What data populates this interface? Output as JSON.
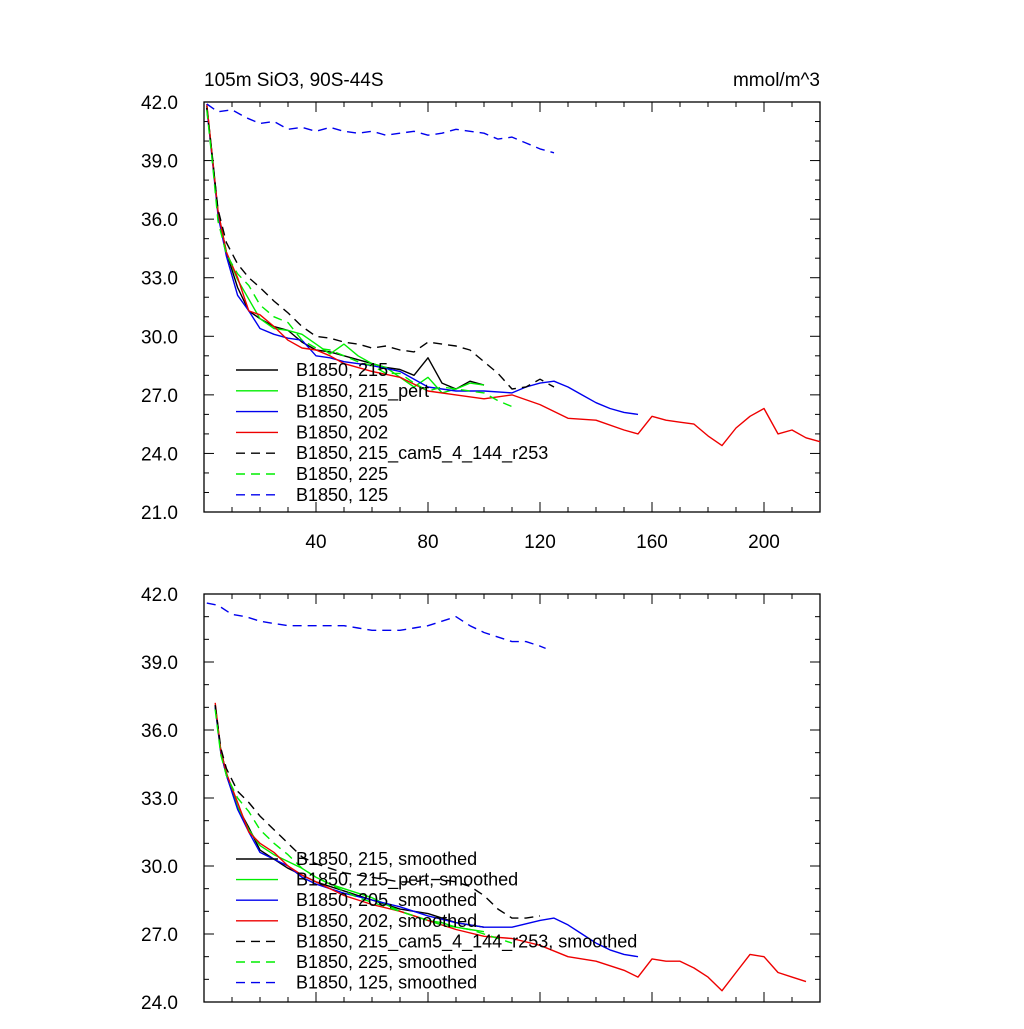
{
  "figure": {
    "title": "105m SiO3, 90S-44S",
    "units": "mmol/m^3"
  },
  "chart_data": [
    {
      "type": "line",
      "title": "105m SiO3, 90S-44S",
      "units": "mmol/m^3",
      "xlabel": "",
      "ylabel": "",
      "xlim": [
        0,
        220
      ],
      "ylim": [
        21,
        42
      ],
      "xticks": [
        40,
        80,
        120,
        160,
        200
      ],
      "xtick_labels": [
        "40",
        "80",
        "120",
        "160",
        "200"
      ],
      "yticks": [
        21,
        24,
        27,
        30,
        33,
        36,
        39,
        42
      ],
      "ytick_labels": [
        "21.0",
        "24.0",
        "27.0",
        "30.0",
        "33.0",
        "36.0",
        "39.0",
        "42.0"
      ],
      "legend_position": "bottom-left",
      "series": [
        {
          "name": "B1850, 215",
          "color": "#000000",
          "dash": "solid",
          "x": [
            1,
            3,
            5,
            8,
            12,
            16,
            20,
            25,
            30,
            35,
            40,
            45,
            50,
            55,
            60,
            65,
            70,
            75,
            80,
            85,
            90,
            95,
            100
          ],
          "y": [
            41.8,
            39.2,
            36.4,
            34.3,
            32.5,
            31.3,
            30.9,
            30.5,
            30.3,
            29.7,
            29.3,
            29.2,
            29.0,
            28.8,
            28.6,
            28.4,
            28.3,
            28.0,
            28.9,
            27.6,
            27.3,
            27.7,
            27.5
          ]
        },
        {
          "name": "B1850, 215_pert",
          "color": "#00ee00",
          "dash": "solid",
          "x": [
            1,
            3,
            5,
            8,
            12,
            16,
            20,
            25,
            30,
            35,
            40,
            45,
            50,
            55,
            60,
            65,
            70,
            75,
            80,
            85,
            90,
            95,
            100
          ],
          "y": [
            41.8,
            39.1,
            36.3,
            34.3,
            32.9,
            31.9,
            30.9,
            30.4,
            30.3,
            30.1,
            29.6,
            29.1,
            29.6,
            29.0,
            28.6,
            28.4,
            27.9,
            27.4,
            27.9,
            27.1,
            27.3,
            27.6,
            27.5
          ]
        },
        {
          "name": "B1850, 205",
          "color": "#0000ee",
          "dash": "solid",
          "x": [
            1,
            3,
            5,
            8,
            12,
            16,
            20,
            25,
            30,
            35,
            40,
            45,
            50,
            60,
            70,
            80,
            90,
            100,
            110,
            115,
            120,
            125,
            130,
            135,
            140,
            145,
            150,
            155
          ],
          "y": [
            41.7,
            39.0,
            36.2,
            34.1,
            32.1,
            31.3,
            30.4,
            30.1,
            29.9,
            29.8,
            29.0,
            28.9,
            28.7,
            28.5,
            28.2,
            27.4,
            27.2,
            27.2,
            27.1,
            27.4,
            27.6,
            27.7,
            27.4,
            27.0,
            26.6,
            26.3,
            26.1,
            26.0
          ]
        },
        {
          "name": "B1850, 202",
          "color": "#ee0000",
          "dash": "solid",
          "x": [
            1,
            3,
            5,
            8,
            12,
            16,
            20,
            25,
            30,
            35,
            40,
            45,
            50,
            60,
            70,
            80,
            90,
            100,
            110,
            120,
            130,
            140,
            150,
            155,
            160,
            165,
            170,
            175,
            180,
            185,
            190,
            195,
            200,
            205,
            210,
            215,
            220
          ],
          "y": [
            41.9,
            39.1,
            36.4,
            34.3,
            33.0,
            31.3,
            31.1,
            30.5,
            29.8,
            29.4,
            29.3,
            29.0,
            28.6,
            28.2,
            27.9,
            27.2,
            27.0,
            26.8,
            27.0,
            26.5,
            25.8,
            25.7,
            25.2,
            25.0,
            25.9,
            25.7,
            25.6,
            25.5,
            24.9,
            24.4,
            25.3,
            25.9,
            26.3,
            25.0,
            25.2,
            24.8,
            24.6
          ]
        },
        {
          "name": "B1850, 215_cam5_4_144_r253",
          "color": "#000000",
          "dash": "dashed",
          "x": [
            1,
            3,
            5,
            8,
            12,
            16,
            20,
            25,
            30,
            35,
            40,
            45,
            50,
            55,
            60,
            65,
            70,
            75,
            80,
            85,
            90,
            95,
            100,
            105,
            110,
            115,
            120,
            125
          ],
          "y": [
            41.7,
            39.1,
            36.5,
            34.8,
            33.7,
            33.0,
            32.5,
            31.8,
            31.2,
            30.5,
            30.0,
            29.9,
            29.7,
            29.6,
            29.4,
            29.5,
            29.3,
            29.2,
            29.7,
            29.6,
            29.5,
            29.3,
            28.7,
            28.1,
            27.3,
            27.4,
            27.8,
            27.4
          ]
        },
        {
          "name": "B1850, 225",
          "color": "#00ee00",
          "dash": "dashed",
          "x": [
            1,
            3,
            5,
            8,
            12,
            16,
            20,
            25,
            30,
            35,
            40,
            45,
            50,
            55,
            60,
            65,
            70,
            75,
            80,
            85,
            90,
            95,
            100,
            105,
            110
          ],
          "y": [
            41.6,
            38.9,
            35.9,
            34.2,
            33.2,
            32.6,
            31.6,
            31.0,
            30.7,
            29.8,
            29.4,
            29.3,
            29.0,
            28.7,
            28.5,
            28.1,
            28.1,
            27.6,
            27.2,
            27.4,
            27.3,
            27.2,
            27.1,
            26.7,
            26.4
          ]
        },
        {
          "name": "B1850, 125",
          "color": "#0000ee",
          "dash": "dashed",
          "x": [
            1,
            5,
            10,
            15,
            20,
            25,
            30,
            35,
            40,
            45,
            50,
            55,
            60,
            65,
            70,
            75,
            80,
            85,
            90,
            95,
            100,
            105,
            110,
            115,
            120,
            125
          ],
          "y": [
            41.9,
            41.5,
            41.6,
            41.2,
            40.9,
            41.0,
            40.6,
            40.7,
            40.5,
            40.7,
            40.5,
            40.4,
            40.5,
            40.3,
            40.4,
            40.5,
            40.3,
            40.4,
            40.6,
            40.5,
            40.4,
            40.1,
            40.2,
            39.9,
            39.6,
            39.4
          ]
        }
      ]
    },
    {
      "type": "line",
      "title": "",
      "xlabel": "",
      "ylabel": "",
      "xlim": [
        0,
        220
      ],
      "ylim": [
        24,
        42
      ],
      "xticks": [
        40,
        80,
        120,
        160,
        200
      ],
      "yticks": [
        24,
        27,
        30,
        33,
        36,
        39,
        42
      ],
      "ytick_labels": [
        "24.0",
        "27.0",
        "30.0",
        "33.0",
        "36.0",
        "39.0",
        "42.0"
      ],
      "legend_position": "bottom-left",
      "series": [
        {
          "name": "B1850, 215, smoothed",
          "color": "#000000",
          "dash": "solid",
          "x": [
            4,
            6,
            8,
            12,
            16,
            20,
            25,
            30,
            35,
            40,
            45,
            50,
            55,
            60,
            65,
            70,
            75,
            80,
            85,
            90,
            95,
            100
          ],
          "y": [
            37.1,
            35.1,
            34.1,
            32.6,
            31.7,
            30.7,
            30.3,
            29.9,
            29.6,
            29.3,
            29.1,
            28.9,
            28.7,
            28.5,
            28.3,
            28.1,
            28.0,
            27.9,
            27.7,
            27.5,
            27.4,
            27.3
          ]
        },
        {
          "name": "B1850, 215_pert, smoothed",
          "color": "#00ee00",
          "dash": "solid",
          "x": [
            4,
            6,
            8,
            12,
            16,
            20,
            25,
            30,
            35,
            40,
            45,
            50,
            55,
            60,
            65,
            70,
            75,
            80,
            85,
            90,
            95,
            100
          ],
          "y": [
            37.0,
            35.0,
            34.0,
            32.6,
            31.6,
            30.9,
            30.5,
            30.2,
            29.9,
            29.5,
            29.2,
            29.0,
            28.8,
            28.6,
            28.3,
            28.0,
            27.8,
            27.6,
            27.5,
            27.3,
            27.2,
            27.1
          ]
        },
        {
          "name": "B1850, 205, smoothed",
          "color": "#0000ee",
          "dash": "solid",
          "x": [
            4,
            6,
            8,
            12,
            16,
            20,
            25,
            30,
            35,
            40,
            50,
            60,
            70,
            80,
            90,
            100,
            110,
            120,
            125,
            130,
            135,
            140,
            145,
            150,
            155
          ],
          "y": [
            37.0,
            35.0,
            34.0,
            32.5,
            31.5,
            30.6,
            30.3,
            30.0,
            29.5,
            29.2,
            28.8,
            28.5,
            28.2,
            27.8,
            27.5,
            27.3,
            27.3,
            27.6,
            27.7,
            27.4,
            27.0,
            26.6,
            26.3,
            26.1,
            26.0
          ]
        },
        {
          "name": "B1850, 202, smoothed",
          "color": "#ee0000",
          "dash": "solid",
          "x": [
            4,
            6,
            8,
            12,
            16,
            20,
            25,
            30,
            35,
            40,
            50,
            60,
            70,
            80,
            90,
            100,
            110,
            120,
            130,
            140,
            150,
            155,
            160,
            165,
            170,
            175,
            180,
            185,
            190,
            195,
            200,
            205,
            210,
            215
          ],
          "y": [
            37.2,
            35.1,
            34.1,
            32.8,
            31.5,
            31.0,
            30.6,
            30.0,
            29.6,
            29.3,
            28.7,
            28.3,
            28.0,
            27.6,
            27.2,
            26.9,
            26.8,
            26.5,
            26.0,
            25.8,
            25.4,
            25.1,
            25.9,
            25.8,
            25.8,
            25.5,
            25.1,
            24.5,
            25.3,
            26.1,
            26.0,
            25.3,
            25.1,
            24.9
          ]
        },
        {
          "name": "B1850, 215_cam5_4_144_r253, smoothed",
          "color": "#000000",
          "dash": "dashed",
          "x": [
            4,
            6,
            8,
            12,
            16,
            20,
            25,
            30,
            35,
            40,
            45,
            50,
            55,
            60,
            65,
            70,
            75,
            80,
            85,
            90,
            95,
            100,
            105,
            110,
            115,
            120
          ],
          "y": [
            37.1,
            35.2,
            34.3,
            33.3,
            32.8,
            32.2,
            31.6,
            31.0,
            30.4,
            30.1,
            29.9,
            29.7,
            29.6,
            29.5,
            29.4,
            29.3,
            29.3,
            29.4,
            29.4,
            29.3,
            29.1,
            28.7,
            28.1,
            27.7,
            27.7,
            27.8
          ]
        },
        {
          "name": "B1850, 225, smoothed",
          "color": "#00ee00",
          "dash": "dashed",
          "x": [
            4,
            6,
            8,
            12,
            16,
            20,
            25,
            30,
            35,
            40,
            45,
            50,
            55,
            60,
            65,
            70,
            75,
            80,
            85,
            90,
            95,
            100,
            105,
            110
          ],
          "y": [
            36.9,
            34.9,
            34.0,
            33.0,
            32.4,
            31.6,
            31.0,
            30.5,
            29.9,
            29.5,
            29.2,
            28.9,
            28.6,
            28.4,
            28.2,
            28.0,
            27.8,
            27.6,
            27.4,
            27.3,
            27.2,
            27.0,
            26.8,
            26.6
          ]
        },
        {
          "name": "B1850, 125, smoothed",
          "color": "#0000ee",
          "dash": "dashed",
          "x": [
            1,
            5,
            10,
            15,
            20,
            25,
            30,
            35,
            40,
            45,
            50,
            55,
            60,
            65,
            70,
            75,
            80,
            85,
            90,
            95,
            100,
            105,
            110,
            115,
            120,
            122
          ],
          "y": [
            41.6,
            41.5,
            41.1,
            41.0,
            40.8,
            40.7,
            40.6,
            40.6,
            40.6,
            40.6,
            40.6,
            40.5,
            40.4,
            40.4,
            40.4,
            40.5,
            40.6,
            40.8,
            41.0,
            40.6,
            40.3,
            40.1,
            39.9,
            39.9,
            39.7,
            39.6
          ]
        }
      ]
    }
  ]
}
